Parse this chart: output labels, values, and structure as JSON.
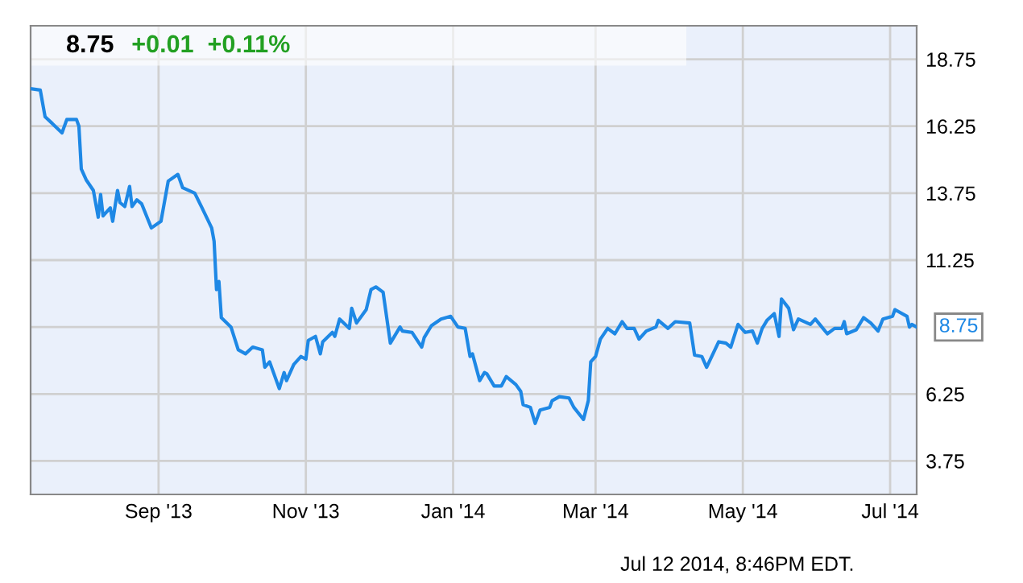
{
  "chart_data": {
    "type": "line",
    "title": "8.75",
    "subtitle": "+0.01  +0.11%",
    "annotations": [
      {
        "text": "8.75",
        "x": "2014-07-12",
        "y": 8.75
      },
      "Jul 12 2014, 8:46PM EDT."
    ],
    "series": [
      {
        "color": "#1e88e5",
        "x": [
          "2013-07-10",
          "2013-07-14",
          "2013-07-16",
          "2013-07-19",
          "2013-07-23",
          "2013-07-25",
          "2013-07-29",
          "2013-07-30",
          "2013-07-31",
          "2013-08-02",
          "2013-08-05",
          "2013-08-07",
          "2013-08-08",
          "2013-08-09",
          "2013-08-12",
          "2013-08-13",
          "2013-08-15",
          "2013-08-16",
          "2013-08-18",
          "2013-08-20",
          "2013-08-21",
          "2013-08-23",
          "2013-08-25",
          "2013-08-29",
          "2013-09-02",
          "2013-09-05",
          "2013-09-09",
          "2013-09-11",
          "2013-09-16",
          "2013-09-19",
          "2013-09-23",
          "2013-09-24",
          "2013-09-25",
          "2013-09-26",
          "2013-09-27",
          "2013-10-01",
          "2013-10-04",
          "2013-10-07",
          "2013-10-10",
          "2013-10-14",
          "2013-10-15",
          "2013-10-17",
          "2013-10-21",
          "2013-10-23",
          "2013-10-24",
          "2013-10-27",
          "2013-10-30",
          "2013-11-01",
          "2013-11-02",
          "2013-11-05",
          "2013-11-07",
          "2013-11-08",
          "2013-11-12",
          "2013-11-13",
          "2013-11-15",
          "2013-11-19",
          "2013-11-20",
          "2013-11-22",
          "2013-11-26",
          "2013-11-28",
          "2013-11-30",
          "2013-12-03",
          "2013-12-06",
          "2013-12-10",
          "2013-12-11",
          "2013-12-15",
          "2013-12-19",
          "2013-12-20",
          "2013-12-23",
          "2013-12-27",
          "2013-12-31",
          "2014-01-03",
          "2014-01-06",
          "2014-01-08",
          "2014-01-09",
          "2014-01-12",
          "2014-01-14",
          "2014-01-15",
          "2014-01-18",
          "2014-01-21",
          "2014-01-23",
          "2014-01-27",
          "2014-01-29",
          "2014-01-30",
          "2014-02-02",
          "2014-02-04",
          "2014-02-06",
          "2014-02-10",
          "2014-02-11",
          "2014-02-14",
          "2014-02-18",
          "2014-02-20",
          "2014-02-24",
          "2014-02-26",
          "2014-02-27",
          "2014-03-01",
          "2014-03-03",
          "2014-03-06",
          "2014-03-09",
          "2014-03-12",
          "2014-03-14",
          "2014-03-17",
          "2014-03-19",
          "2014-03-22",
          "2014-03-26",
          "2014-03-27",
          "2014-03-31",
          "2014-04-03",
          "2014-04-09",
          "2014-04-11",
          "2014-04-14",
          "2014-04-16",
          "2014-04-21",
          "2014-04-24",
          "2014-04-26",
          "2014-04-29",
          "2014-05-02",
          "2014-05-05",
          "2014-05-07",
          "2014-05-09",
          "2014-05-11",
          "2014-05-14",
          "2014-05-16",
          "2014-05-17",
          "2014-05-20",
          "2014-05-22",
          "2014-05-24",
          "2014-05-29",
          "2014-05-31",
          "2014-06-05",
          "2014-06-08",
          "2014-06-11",
          "2014-06-12",
          "2014-06-13",
          "2014-06-17",
          "2014-06-20",
          "2014-06-23",
          "2014-06-26",
          "2014-06-28",
          "2014-07-02",
          "2014-07-03",
          "2014-07-08",
          "2014-07-09",
          "2014-07-10",
          "2014-07-12"
        ],
        "values": [
          17.65,
          17.6,
          16.6,
          16.35,
          16.0,
          16.5,
          16.5,
          16.25,
          14.65,
          14.25,
          13.85,
          12.85,
          13.7,
          12.9,
          13.2,
          12.7,
          13.85,
          13.4,
          13.25,
          14.0,
          13.25,
          13.5,
          13.35,
          12.45,
          12.7,
          14.2,
          14.45,
          13.95,
          13.75,
          13.2,
          12.45,
          11.95,
          10.15,
          10.45,
          9.1,
          8.75,
          7.9,
          7.75,
          8.0,
          7.9,
          7.25,
          7.45,
          6.45,
          7.05,
          6.75,
          7.35,
          7.65,
          7.55,
          8.25,
          8.4,
          7.75,
          8.2,
          8.55,
          8.4,
          9.05,
          8.7,
          9.45,
          8.9,
          9.4,
          10.15,
          10.25,
          10.05,
          8.15,
          8.75,
          8.6,
          8.55,
          8.0,
          8.35,
          8.8,
          9.05,
          9.15,
          8.75,
          8.7,
          7.65,
          7.75,
          6.75,
          7.05,
          7.0,
          6.55,
          6.55,
          6.9,
          6.6,
          6.35,
          5.85,
          5.75,
          5.15,
          5.65,
          5.75,
          6.0,
          6.15,
          6.1,
          5.75,
          5.3,
          6.0,
          7.45,
          7.65,
          8.3,
          8.7,
          8.5,
          8.95,
          8.7,
          8.7,
          8.3,
          8.6,
          8.75,
          9.0,
          8.7,
          8.95,
          8.9,
          7.7,
          7.65,
          7.25,
          8.2,
          8.15,
          8.0,
          8.85,
          8.55,
          8.6,
          8.15,
          8.7,
          9.0,
          9.25,
          8.4,
          9.8,
          9.45,
          8.65,
          9.05,
          8.85,
          9.05,
          8.5,
          8.7,
          8.7,
          8.95,
          8.5,
          8.65,
          9.1,
          8.9,
          8.6,
          9.05,
          9.15,
          9.4,
          9.15,
          8.75,
          8.85,
          8.75
        ]
      }
    ],
    "xlim": [
      "2013-07-10",
      "2014-07-12"
    ],
    "xticks": [
      {
        "value": "2013-09-01",
        "label": "Sep '13"
      },
      {
        "value": "2013-11-01",
        "label": "Nov '13"
      },
      {
        "value": "2014-01-01",
        "label": "Jan '14"
      },
      {
        "value": "2014-03-01",
        "label": "Mar '14"
      },
      {
        "value": "2014-05-01",
        "label": "May '14"
      },
      {
        "value": "2014-07-01",
        "label": "Jul '14"
      }
    ],
    "ylim": [
      2.5,
      20
    ],
    "yticks": [
      3.75,
      6.25,
      {
        "value": 8.75,
        "label": null
      },
      11.25,
      13.75,
      16.25,
      18.75
    ],
    "grid": true,
    "legend": false
  }
}
